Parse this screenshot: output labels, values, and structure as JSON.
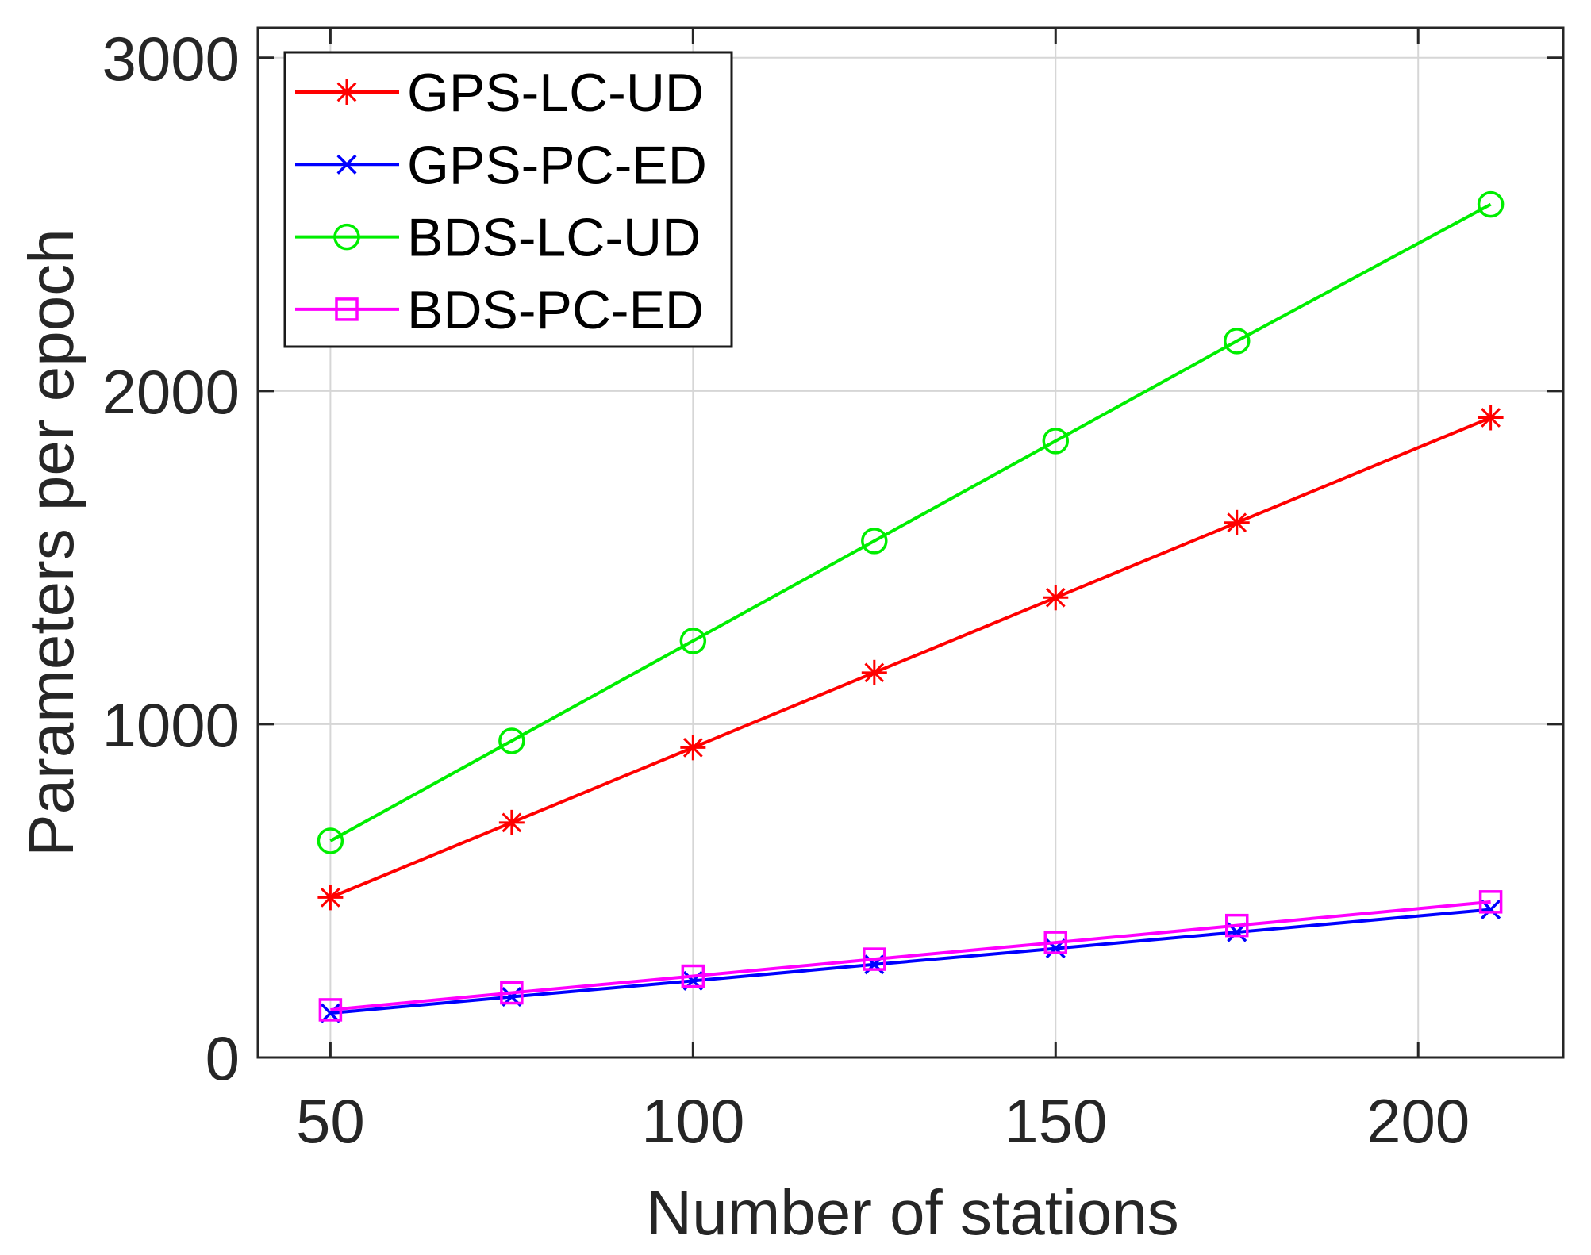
{
  "figure": {
    "background": "#ffffff"
  },
  "chart_data": {
    "type": "line",
    "title": "",
    "xlabel": "Number of stations",
    "ylabel": "Parameters per epoch",
    "x": [
      50,
      75,
      100,
      125,
      150,
      175,
      210
    ],
    "series": [
      {
        "name": "GPS-LC-UD",
        "color": "#ff0000",
        "marker": "asterisk",
        "values": [
          480,
          705,
          930,
          1155,
          1380,
          1605,
          1920
        ]
      },
      {
        "name": "GPS-PC-ED",
        "color": "#0000ff",
        "marker": "x",
        "values": [
          133,
          182,
          230,
          279,
          327,
          376,
          444
        ]
      },
      {
        "name": "BDS-LC-UD",
        "color": "#00ee00",
        "marker": "circle",
        "values": [
          650,
          950,
          1250,
          1550,
          1850,
          2150,
          2560
        ]
      },
      {
        "name": "BDS-PC-ED",
        "color": "#ff00ff",
        "marker": "square",
        "values": [
          143,
          194,
          244,
          295,
          345,
          396,
          467
        ]
      }
    ],
    "xticks": [
      50,
      100,
      150,
      200
    ],
    "yticks": [
      0,
      1000,
      2000,
      3000
    ],
    "xlim": [
      40,
      220
    ],
    "ylim": [
      0,
      3090
    ],
    "grid": true,
    "legend_position": "top-left",
    "axis_color": "#262626",
    "grid_color": "#d6d6d6",
    "legend_border_color": "#1a1a1a",
    "legend_background": "#ffffff"
  }
}
